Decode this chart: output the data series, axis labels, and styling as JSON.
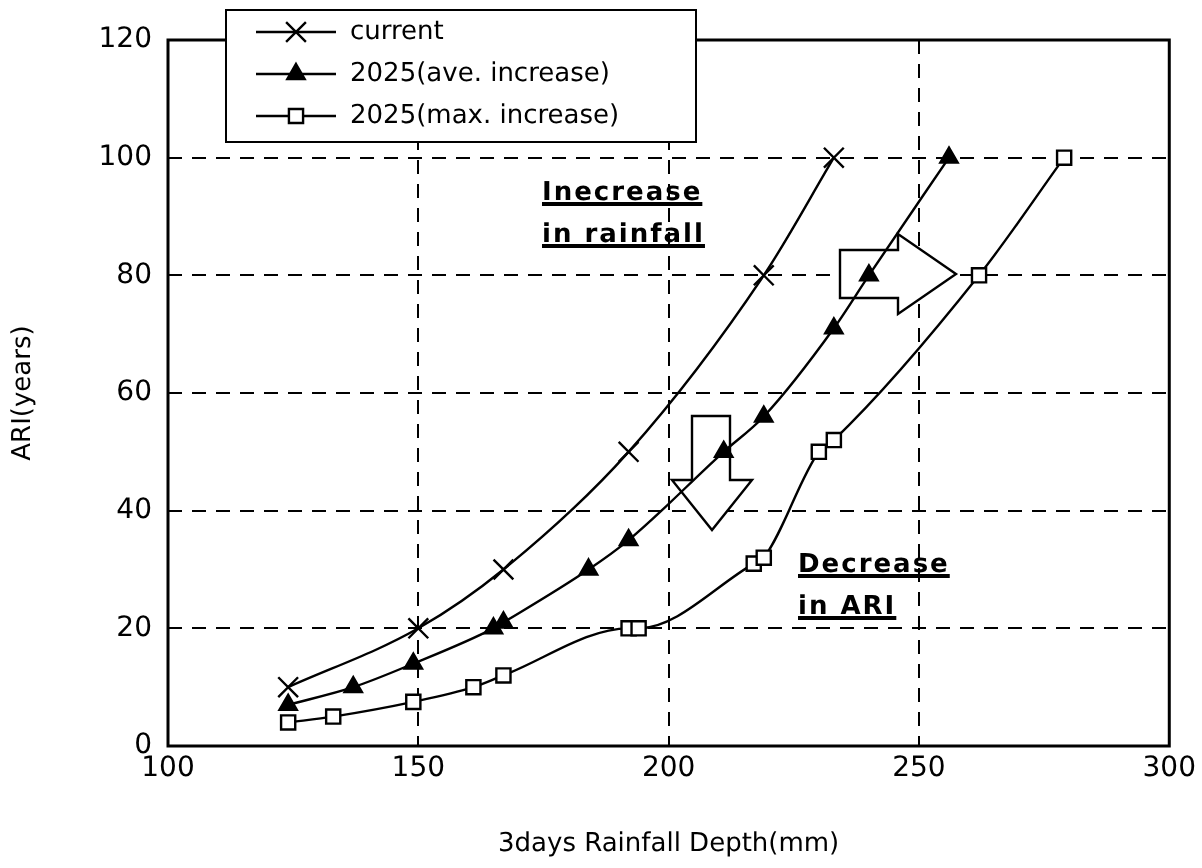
{
  "chart_data": {
    "type": "line",
    "xlabel": "3days Rainfall Depth(mm)",
    "ylabel": "ARI(years)",
    "xlim": [
      100,
      300
    ],
    "xticks": [
      100,
      150,
      200,
      250,
      300
    ],
    "ylim": [
      0,
      120
    ],
    "yticks": [
      0,
      20,
      40,
      60,
      80,
      100,
      120
    ],
    "grid": true,
    "legend": "top left",
    "line_style": "solid",
    "annotations": [
      "Inecrease\nin rainfall",
      "Decrease\nin ARI"
    ],
    "series": [
      {
        "name": "current",
        "color": "#000000",
        "marker": "cross",
        "x": [
          124,
          150,
          167,
          192,
          219,
          233
        ],
        "values": [
          10,
          20,
          30,
          50,
          80,
          100
        ]
      },
      {
        "name": "2025(ave. increase)",
        "color": "#000000",
        "marker": "triangle",
        "x": [
          124,
          137,
          149,
          165,
          167,
          184,
          192,
          211,
          219,
          233,
          240,
          256
        ],
        "values": [
          7,
          10,
          14,
          20,
          21,
          30,
          35,
          50,
          56,
          71,
          80,
          100
        ]
      },
      {
        "name": "2025(max. increase)",
        "color": "#000000",
        "marker": "square",
        "x": [
          124,
          133,
          149,
          161,
          167,
          192,
          194,
          217,
          219,
          230,
          233,
          262,
          279
        ],
        "values": [
          4,
          5,
          7.5,
          10,
          12,
          20,
          20,
          31,
          32,
          50,
          52,
          80,
          100
        ]
      }
    ]
  }
}
